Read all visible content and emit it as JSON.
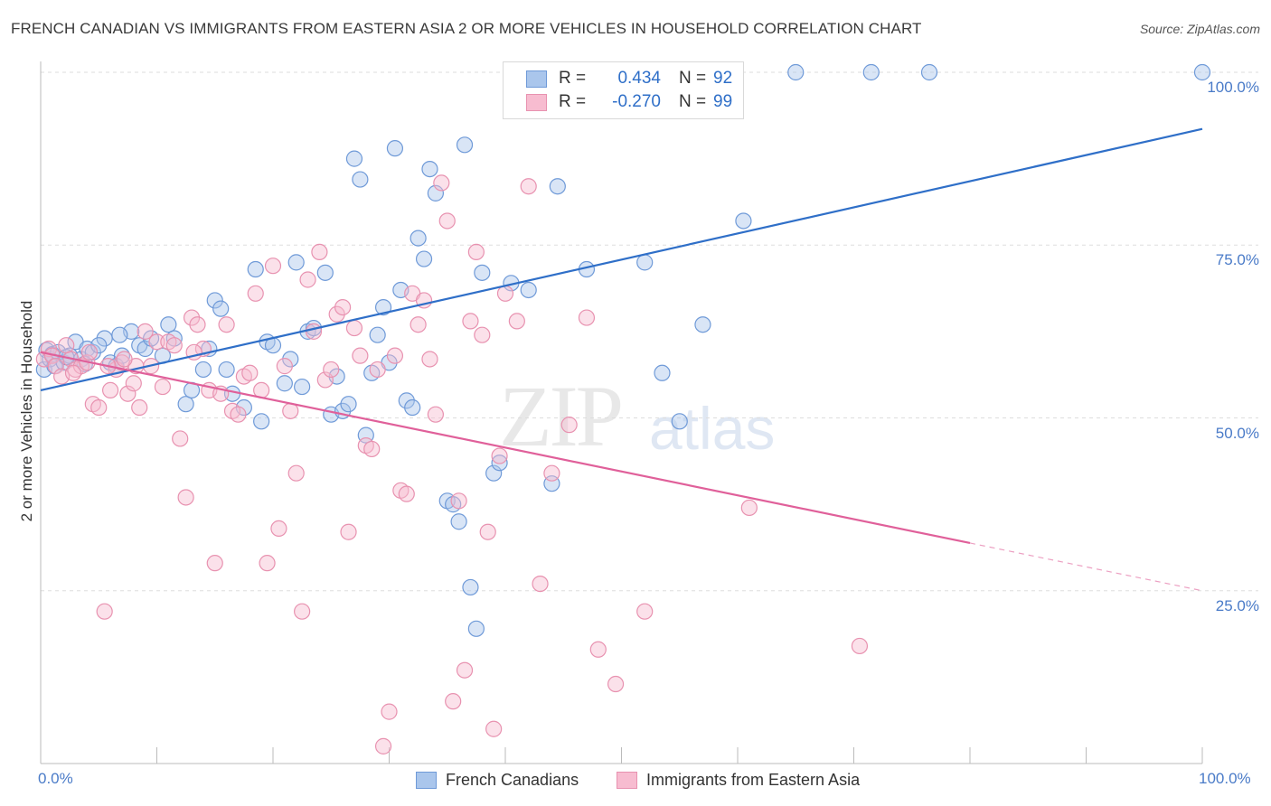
{
  "title": "FRENCH CANADIAN VS IMMIGRANTS FROM EASTERN ASIA 2 OR MORE VEHICLES IN HOUSEHOLD CORRELATION CHART",
  "source": "Source: ZipAtlas.com",
  "watermark": {
    "zip": "ZIP",
    "atlas": "atlas"
  },
  "stats": {
    "series1": {
      "r_label": "R =",
      "r_value": "0.434",
      "n_label": "N =",
      "n_value": "92"
    },
    "series2": {
      "r_label": "R =",
      "r_value": "-0.270",
      "n_label": "N =",
      "n_value": "99"
    }
  },
  "legend": {
    "series1": "French Canadians",
    "series2": "Immigrants from Eastern Asia"
  },
  "colors": {
    "blue_fill": "#aac6ec",
    "blue_stroke": "#6f9ad8",
    "blue_line": "#2f6fc8",
    "pink_fill": "#f7bcd0",
    "pink_stroke": "#e892b0",
    "pink_line": "#e0609a",
    "tick_color": "#4a7bc8",
    "grid": "#dddddd"
  },
  "chart_data": {
    "type": "scatter",
    "title": "FRENCH CANADIAN VS IMMIGRANTS FROM EASTERN ASIA 2 OR MORE VEHICLES IN HOUSEHOLD CORRELATION CHART",
    "xlabel": "",
    "ylabel": "2 or more Vehicles in Household",
    "xlim": [
      0,
      100
    ],
    "ylim": [
      0,
      100
    ],
    "x_ticks": [
      "0.0%",
      "100.0%"
    ],
    "y_ticks": [
      {
        "value": 25,
        "label": "25.0%"
      },
      {
        "value": 50,
        "label": "50.0%"
      },
      {
        "value": 75,
        "label": "75.0%"
      },
      {
        "value": 100,
        "label": "100.0%"
      }
    ],
    "grid": true,
    "legend_position": "bottom",
    "series": [
      {
        "name": "French Canadians",
        "r": 0.434,
        "n": 92,
        "trend": {
          "x0": 0,
          "y0": 54.0,
          "x1": 100,
          "y1": 91.8,
          "dashed_from": 100
        },
        "points": [
          [
            0.3,
            57.0
          ],
          [
            0.5,
            59.8
          ],
          [
            0.8,
            58.5
          ],
          [
            1.0,
            59.2
          ],
          [
            1.2,
            57.5
          ],
          [
            1.5,
            59.5
          ],
          [
            2.0,
            58.0
          ],
          [
            2.5,
            59.0
          ],
          [
            3.0,
            61.0
          ],
          [
            3.5,
            58.5
          ],
          [
            4.0,
            60.0
          ],
          [
            4.5,
            59.5
          ],
          [
            5.5,
            61.5
          ],
          [
            5.0,
            60.5
          ],
          [
            6.0,
            58.0
          ],
          [
            6.5,
            57.5
          ],
          [
            7.0,
            59.0
          ],
          [
            7.8,
            62.5
          ],
          [
            8.5,
            60.5
          ],
          [
            9.0,
            60.0
          ],
          [
            10.5,
            59.0
          ],
          [
            11.0,
            63.5
          ],
          [
            11.5,
            61.5
          ],
          [
            12.5,
            52.0
          ],
          [
            13.0,
            54.0
          ],
          [
            14.0,
            57.0
          ],
          [
            14.5,
            60.0
          ],
          [
            15.0,
            67.0
          ],
          [
            15.5,
            65.8
          ],
          [
            16.0,
            57.0
          ],
          [
            16.5,
            53.5
          ],
          [
            17.5,
            51.5
          ],
          [
            18.5,
            71.5
          ],
          [
            19.0,
            49.5
          ],
          [
            19.5,
            61.0
          ],
          [
            20.0,
            60.5
          ],
          [
            21.0,
            55.0
          ],
          [
            21.5,
            58.5
          ],
          [
            22.0,
            72.5
          ],
          [
            22.5,
            54.5
          ],
          [
            23.0,
            62.5
          ],
          [
            23.5,
            63.0
          ],
          [
            24.5,
            71.0
          ],
          [
            25.0,
            50.5
          ],
          [
            25.5,
            56.0
          ],
          [
            26.0,
            51.0
          ],
          [
            26.5,
            52.0
          ],
          [
            27.0,
            87.5
          ],
          [
            27.5,
            84.5
          ],
          [
            28.0,
            47.5
          ],
          [
            28.5,
            56.5
          ],
          [
            29.0,
            62.0
          ],
          [
            29.5,
            66.0
          ],
          [
            30.0,
            58.0
          ],
          [
            30.5,
            89.0
          ],
          [
            31.0,
            68.5
          ],
          [
            31.5,
            52.5
          ],
          [
            32.0,
            51.5
          ],
          [
            32.5,
            76.0
          ],
          [
            33.0,
            73.0
          ],
          [
            33.5,
            86.0
          ],
          [
            34.0,
            82.5
          ],
          [
            35.0,
            38.0
          ],
          [
            35.5,
            37.5
          ],
          [
            36.0,
            35.0
          ],
          [
            36.5,
            89.5
          ],
          [
            37.0,
            25.5
          ],
          [
            37.5,
            19.5
          ],
          [
            38.0,
            71.0
          ],
          [
            39.0,
            42.0
          ],
          [
            39.5,
            43.5
          ],
          [
            40.5,
            69.5
          ],
          [
            42.0,
            68.5
          ],
          [
            44.0,
            40.5
          ],
          [
            44.5,
            83.5
          ],
          [
            47.0,
            71.5
          ],
          [
            49.5,
            99.5
          ],
          [
            50.5,
            100.0
          ],
          [
            52.0,
            72.5
          ],
          [
            53.5,
            56.5
          ],
          [
            55.0,
            49.5
          ],
          [
            57.0,
            63.5
          ],
          [
            59.0,
            100.0
          ],
          [
            60.5,
            78.5
          ],
          [
            65.0,
            100.0
          ],
          [
            71.5,
            100.0
          ],
          [
            76.5,
            100.0
          ],
          [
            100.0,
            100.0
          ],
          [
            2.2,
            58.8
          ],
          [
            6.8,
            62.0
          ],
          [
            9.5,
            61.5
          ],
          [
            3.8,
            57.8
          ]
        ]
      },
      {
        "name": "Immigrants from Eastern Asia",
        "r": -0.27,
        "n": 99,
        "trend": {
          "x0": 0,
          "y0": 59.5,
          "x1": 100,
          "y1": 25.0,
          "dashed_from": 80
        },
        "points": [
          [
            0.3,
            58.5
          ],
          [
            0.7,
            60.0
          ],
          [
            1.0,
            59.0
          ],
          [
            1.3,
            57.5
          ],
          [
            1.8,
            56.0
          ],
          [
            2.2,
            60.5
          ],
          [
            2.6,
            58.5
          ],
          [
            3.0,
            57.0
          ],
          [
            3.5,
            57.5
          ],
          [
            4.0,
            58.0
          ],
          [
            4.5,
            52.0
          ],
          [
            5.0,
            51.5
          ],
          [
            5.5,
            22.0
          ],
          [
            6.0,
            54.0
          ],
          [
            6.5,
            57.0
          ],
          [
            7.0,
            58.0
          ],
          [
            7.5,
            53.5
          ],
          [
            8.0,
            55.0
          ],
          [
            8.5,
            51.5
          ],
          [
            9.0,
            62.5
          ],
          [
            9.5,
            57.5
          ],
          [
            10.0,
            61.0
          ],
          [
            10.5,
            54.5
          ],
          [
            11.0,
            61.0
          ],
          [
            11.5,
            60.5
          ],
          [
            12.0,
            47.0
          ],
          [
            12.5,
            38.5
          ],
          [
            13.0,
            64.5
          ],
          [
            13.5,
            63.5
          ],
          [
            14.0,
            60.0
          ],
          [
            14.5,
            54.0
          ],
          [
            15.0,
            29.0
          ],
          [
            15.5,
            53.5
          ],
          [
            16.0,
            63.5
          ],
          [
            16.5,
            51.0
          ],
          [
            17.0,
            50.5
          ],
          [
            17.5,
            56.0
          ],
          [
            18.0,
            56.5
          ],
          [
            18.5,
            68.0
          ],
          [
            19.0,
            54.0
          ],
          [
            19.5,
            29.0
          ],
          [
            20.0,
            72.0
          ],
          [
            20.5,
            34.0
          ],
          [
            21.0,
            57.5
          ],
          [
            21.5,
            51.0
          ],
          [
            22.0,
            42.0
          ],
          [
            22.5,
            22.0
          ],
          [
            23.0,
            70.0
          ],
          [
            23.5,
            62.5
          ],
          [
            24.0,
            74.0
          ],
          [
            24.5,
            55.5
          ],
          [
            25.0,
            57.0
          ],
          [
            25.5,
            65.0
          ],
          [
            26.0,
            66.0
          ],
          [
            26.5,
            33.5
          ],
          [
            27.0,
            63.0
          ],
          [
            27.5,
            59.0
          ],
          [
            28.0,
            46.0
          ],
          [
            28.5,
            45.5
          ],
          [
            29.0,
            57.0
          ],
          [
            29.5,
            2.5
          ],
          [
            30.0,
            7.5
          ],
          [
            30.5,
            59.0
          ],
          [
            31.0,
            39.5
          ],
          [
            31.5,
            39.0
          ],
          [
            32.0,
            68.0
          ],
          [
            32.5,
            63.5
          ],
          [
            33.0,
            67.0
          ],
          [
            33.5,
            58.5
          ],
          [
            34.0,
            50.5
          ],
          [
            34.5,
            84.0
          ],
          [
            35.0,
            78.5
          ],
          [
            35.5,
            9.0
          ],
          [
            36.0,
            38.0
          ],
          [
            36.5,
            13.5
          ],
          [
            37.0,
            64.0
          ],
          [
            37.5,
            74.0
          ],
          [
            38.0,
            62.0
          ],
          [
            38.5,
            33.5
          ],
          [
            39.0,
            5.0
          ],
          [
            39.5,
            44.5
          ],
          [
            40.0,
            68.0
          ],
          [
            41.0,
            64.0
          ],
          [
            42.0,
            83.5
          ],
          [
            43.0,
            26.0
          ],
          [
            44.0,
            42.0
          ],
          [
            45.5,
            49.0
          ],
          [
            47.0,
            64.5
          ],
          [
            48.0,
            16.5
          ],
          [
            49.5,
            11.5
          ],
          [
            52.0,
            22.0
          ],
          [
            61.0,
            37.0
          ],
          [
            70.5,
            17.0
          ],
          [
            8.2,
            57.5
          ],
          [
            13.2,
            59.5
          ],
          [
            2.8,
            56.5
          ],
          [
            5.8,
            57.5
          ],
          [
            7.2,
            58.5
          ],
          [
            4.2,
            59.5
          ]
        ]
      }
    ]
  }
}
